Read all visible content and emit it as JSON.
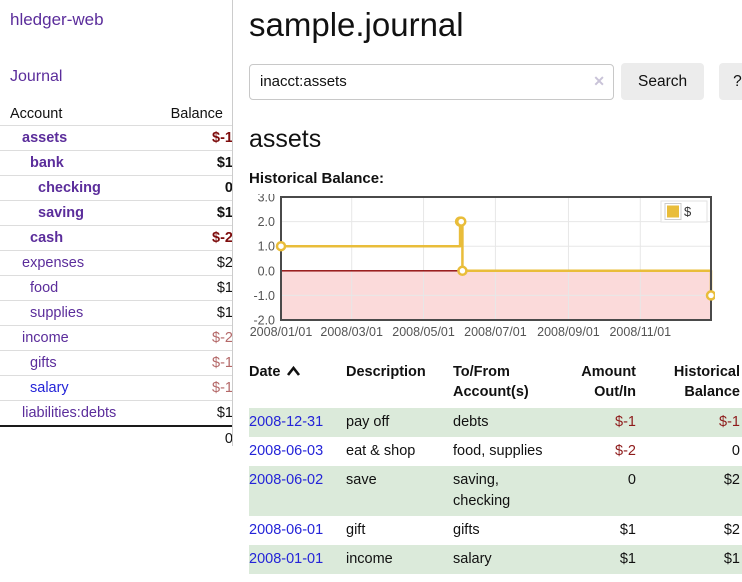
{
  "app": {
    "brand": "hledger-web",
    "nav_journal": "Journal"
  },
  "colors": {
    "purple": "#5b2d9b",
    "blue": "#2424d8",
    "negative_strong": "#7d0c0c",
    "negative_soft": "#b46868",
    "negative": "#8e1b1b",
    "row_green": "#dbeada",
    "button_gray": "#ececec",
    "divider": "#cccccc"
  },
  "sidebar": {
    "headers": {
      "account": "Account",
      "balance": "Balance"
    },
    "accounts": [
      {
        "name": "assets",
        "balance": "$-1",
        "depth": 1,
        "bold": true,
        "balance_class": "neg-strong"
      },
      {
        "name": "bank",
        "balance": "$1",
        "depth": 2,
        "bold": true,
        "balance_class": ""
      },
      {
        "name": "checking",
        "balance": "0",
        "depth": 3,
        "bold": true,
        "balance_class": ""
      },
      {
        "name": "saving",
        "balance": "$1",
        "depth": 3,
        "bold": true,
        "balance_class": ""
      },
      {
        "name": "cash",
        "balance": "$-2",
        "depth": 2,
        "bold": true,
        "balance_class": "neg-strong"
      },
      {
        "name": "expenses",
        "balance": "$2",
        "depth": 1,
        "bold": false,
        "balance_class": ""
      },
      {
        "name": "food",
        "balance": "$1",
        "depth": 2,
        "bold": false,
        "balance_class": ""
      },
      {
        "name": "supplies",
        "balance": "$1",
        "depth": 2,
        "bold": false,
        "balance_class": ""
      },
      {
        "name": "income",
        "balance": "$-2",
        "depth": 1,
        "bold": false,
        "balance_class": "neg-soft"
      },
      {
        "name": "gifts",
        "balance": "$-1",
        "depth": 2,
        "bold": false,
        "balance_class": "neg-soft"
      },
      {
        "name": "salary",
        "balance": "$-1",
        "depth": 2,
        "bold": false,
        "balance_class": "neg-soft",
        "unvisited": true
      },
      {
        "name": "liabilities:debts",
        "balance": "$1",
        "depth": 1,
        "bold": false,
        "balance_class": ""
      }
    ],
    "total": "0"
  },
  "main": {
    "title": "sample.journal",
    "search": {
      "value": "inacct:assets",
      "clear_icon": "✕",
      "button": "Search",
      "help": "?"
    },
    "account_heading": "assets"
  },
  "chart_data": {
    "type": "line",
    "title": "Historical Balance:",
    "legend": {
      "label": "$",
      "position": "top-right"
    },
    "series": [
      {
        "name": "$",
        "color": "#e9bd3a",
        "step": true,
        "points": [
          [
            "2008-01-01",
            1
          ],
          [
            "2008-06-01",
            2
          ],
          [
            "2008-06-02",
            2
          ],
          [
            "2008-06-03",
            0
          ],
          [
            "2008-12-31",
            -1
          ]
        ]
      }
    ],
    "ylim": [
      -2,
      3
    ],
    "yticks": [
      3,
      2,
      1,
      0,
      -1,
      -2
    ],
    "x_range": [
      "2008-01-01",
      "2008-12-31"
    ],
    "xticks": [
      {
        "date": "2008-01-01",
        "label": "2008/01/01"
      },
      {
        "date": "2008-03-01",
        "label": "2008/03/01"
      },
      {
        "date": "2008-05-01",
        "label": "2008/05/01"
      },
      {
        "date": "2008-07-01",
        "label": "2008/07/01"
      },
      {
        "date": "2008-09-01",
        "label": "2008/09/01"
      },
      {
        "date": "2008-11-01",
        "label": "2008/11/01"
      }
    ],
    "negative_region": {
      "below": 0,
      "fill": "#fbdada",
      "line_color": "#8b0000"
    },
    "grid": true
  },
  "transactions": {
    "headers": {
      "date": "Date",
      "description": "Description",
      "accounts": "To/From Account(s)",
      "amount": "Amount Out/In",
      "balance": "Historical Balance"
    },
    "rows": [
      {
        "date": "2008-12-31",
        "description": "pay off",
        "accounts": "debts",
        "amount": "$-1",
        "amount_neg": true,
        "balance": "$-1",
        "balance_neg": true
      },
      {
        "date": "2008-06-03",
        "description": "eat & shop",
        "accounts": "food, supplies",
        "amount": "$-2",
        "amount_neg": true,
        "balance": "0",
        "balance_neg": false
      },
      {
        "date": "2008-06-02",
        "description": "save",
        "accounts": "saving, checking",
        "amount": "0",
        "amount_neg": false,
        "balance": "$2",
        "balance_neg": false
      },
      {
        "date": "2008-06-01",
        "description": "gift",
        "accounts": "gifts",
        "amount": "$1",
        "amount_neg": false,
        "balance": "$2",
        "balance_neg": false
      },
      {
        "date": "2008-01-01",
        "description": "income",
        "accounts": "salary",
        "amount": "$1",
        "amount_neg": false,
        "balance": "$1",
        "balance_neg": false
      }
    ]
  }
}
